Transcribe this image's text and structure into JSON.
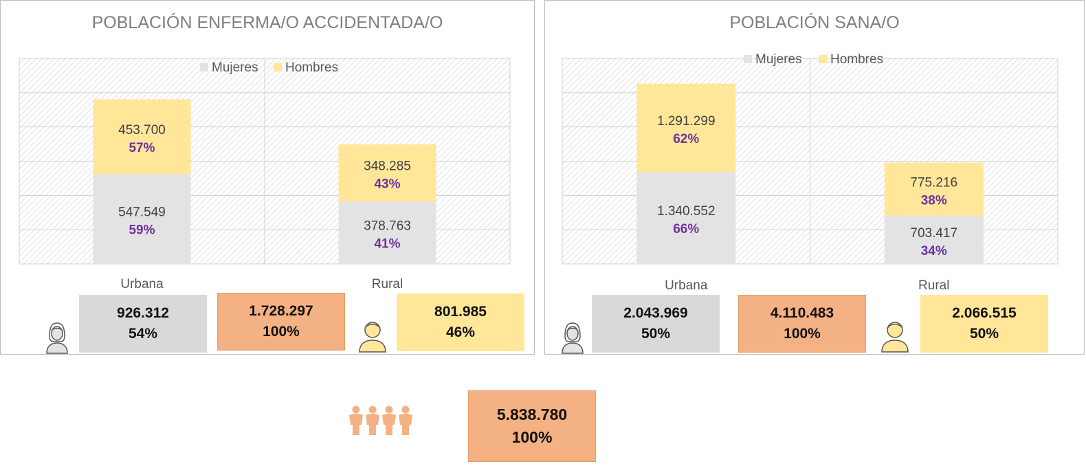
{
  "colors": {
    "mujeres": "#e3e3e3",
    "hombres": "#ffe699",
    "total": "#f4b183",
    "percent_text": "#7030a0",
    "value_text": "#404040",
    "title_text": "#7f7f7f"
  },
  "icons": {
    "female": "woman-user-icon",
    "male": "man-user-icon",
    "group": "family-group-icon"
  },
  "chart_data": [
    {
      "type": "bar",
      "stacked": true,
      "title": "POBLACIÓN ENFERMA/O ACCIDENTADA/O",
      "categories": [
        "Urbana",
        "Rural"
      ],
      "series": [
        {
          "name": "Mujeres",
          "values": [
            547549,
            378763
          ],
          "value_labels": [
            "547.549",
            "378.763"
          ],
          "percent_labels": [
            "59%",
            "41%"
          ]
        },
        {
          "name": "Hombres",
          "values": [
            453700,
            348285
          ],
          "value_labels": [
            "453.700",
            "348.285"
          ],
          "percent_labels": [
            "57%",
            "43%"
          ]
        }
      ],
      "ylim": [
        0,
        1250000
      ],
      "grid": true,
      "legend": "top-center",
      "totals": {
        "mujeres": {
          "value": "926.312",
          "percent": "54%"
        },
        "all": {
          "value": "1.728.297",
          "percent": "100%"
        },
        "hombres": {
          "value": "801.985",
          "percent": "46%"
        }
      }
    },
    {
      "type": "bar",
      "stacked": true,
      "title": "POBLACIÓN SANA/O",
      "categories": [
        "Urbana",
        "Rural"
      ],
      "series": [
        {
          "name": "Mujeres",
          "values": [
            1340552,
            703417
          ],
          "value_labels": [
            "1.340.552",
            "703.417"
          ],
          "percent_labels": [
            "66%",
            "34%"
          ]
        },
        {
          "name": "Hombres",
          "values": [
            1291299,
            775216
          ],
          "value_labels": [
            "1.291.299",
            "775.216"
          ],
          "percent_labels": [
            "62%",
            "38%"
          ]
        }
      ],
      "ylim": [
        0,
        3000000
      ],
      "grid": true,
      "legend": "top-center",
      "totals": {
        "mujeres": {
          "value": "2.043.969",
          "percent": "50%"
        },
        "all": {
          "value": "4.110.483",
          "percent": "100%"
        },
        "hombres": {
          "value": "2.066.515",
          "percent": "50%"
        }
      }
    }
  ],
  "grand_total": {
    "value": "5.838.780",
    "percent": "100%"
  }
}
